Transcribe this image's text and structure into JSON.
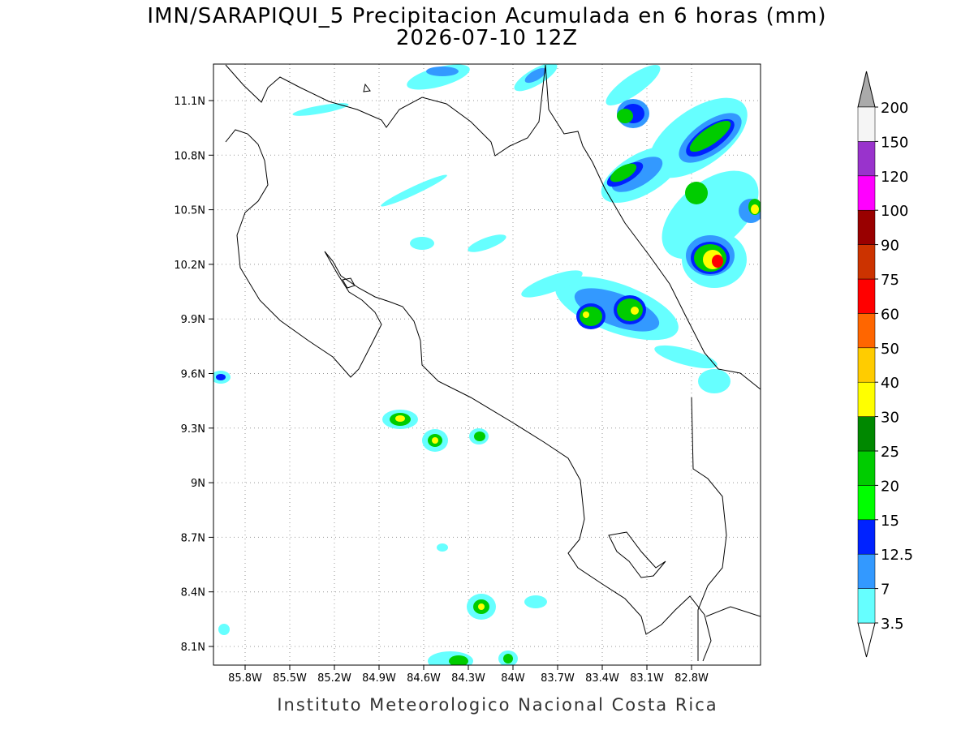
{
  "title": "IMN/SARAPIQUI_5 Precipitacion Acumulada en 6 horas (mm)",
  "subtitle": "2026-07-10 12Z",
  "footer": "Instituto Meteorologico Nacional Costa Rica",
  "map": {
    "xticks": [
      "85.8W",
      "85.5W",
      "85.2W",
      "84.9W",
      "84.6W",
      "84.3W",
      "84W",
      "83.7W",
      "83.4W",
      "83.1W",
      "82.8W"
    ],
    "yticks": [
      "11.1N",
      "10.8N",
      "10.5N",
      "10.2N",
      "9.9N",
      "9.6N",
      "9.3N",
      "9N",
      "8.7N",
      "8.4N",
      "8.1N"
    ],
    "grid": true
  },
  "colorbar": {
    "levels": [
      3.5,
      7,
      12.5,
      15,
      20,
      25,
      30,
      40,
      50,
      60,
      75,
      90,
      100,
      120,
      150,
      200
    ],
    "colors": [
      "#66ffff",
      "#3399ff",
      "#0022ff",
      "#00ff00",
      "#00cc00",
      "#008800",
      "#ffff00",
      "#ffcc00",
      "#ff6600",
      "#ff0000",
      "#cc3300",
      "#990000",
      "#ff00ff",
      "#9933cc",
      "#f5f5f5"
    ],
    "over_color": "#aaaaaa",
    "under_color": "#ffffff"
  }
}
